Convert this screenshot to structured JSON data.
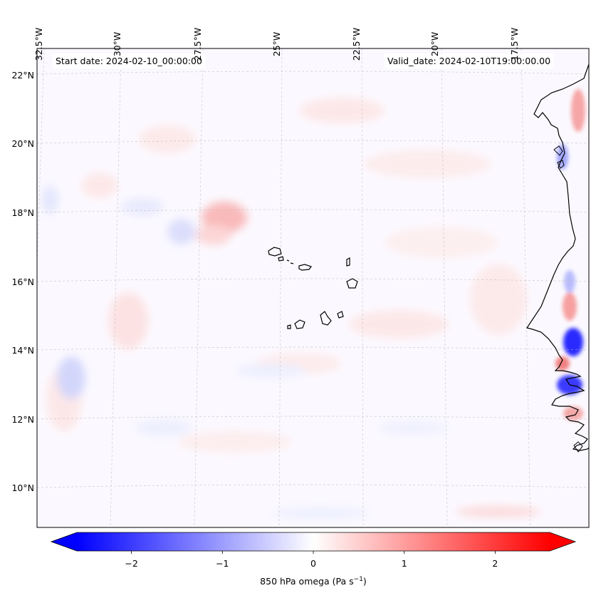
{
  "map": {
    "start_date": "Start date: 2024-02-10_00:00:00",
    "valid_date": "Valid_date: 2024-02-10T19:00:00.00",
    "variable": "850 hPa omega",
    "units_main": "(Pa s",
    "units_exp": "−1",
    "units_close": ")",
    "lat_labels": [
      "22°N",
      "20°N",
      "18°N",
      "16°N",
      "14°N",
      "12°N",
      "10°N"
    ],
    "lon_labels": [
      "32.5°W",
      "30°W",
      "27.5°W",
      "25°W",
      "22.5°W",
      "20°W",
      "17.5°W"
    ]
  },
  "colorbar": {
    "min": -2.6,
    "max": 2.6,
    "ticks": [
      -2,
      -1,
      0,
      1,
      2
    ],
    "tick_labels": [
      "−2",
      "−1",
      "0",
      "1",
      "2"
    ],
    "colors": {
      "negative": "#0000ff",
      "neutral": "#ffffff",
      "positive": "#ff0000"
    }
  }
}
